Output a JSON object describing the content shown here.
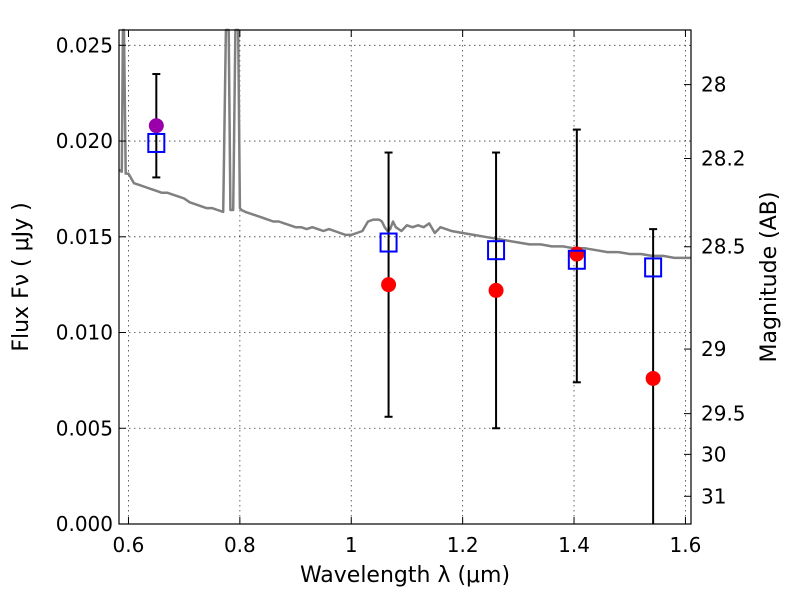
{
  "chart_data": {
    "type": "scatter",
    "xlabel": "Wavelength  λ (μm)",
    "ylabel": "Flux  Fν  ( μJy )",
    "y2label": "Magnitude (AB)",
    "xlim": [
      0.583,
      1.61
    ],
    "ylim": [
      0.0,
      0.0258
    ],
    "x_ticks": [
      0.6,
      0.8,
      1.0,
      1.2,
      1.4,
      1.6
    ],
    "x_tick_labels": [
      "0.6",
      "0.8",
      "1",
      "1.2",
      "1.4",
      "1.6"
    ],
    "y_ticks": [
      0.0,
      0.005,
      0.01,
      0.015,
      0.02,
      0.025
    ],
    "y_tick_labels": [
      "0.000",
      "0.005",
      "0.010",
      "0.015",
      "0.020",
      "0.025"
    ],
    "mag_ticks": [
      28,
      28.2,
      28.5,
      29,
      29.5,
      30,
      31
    ],
    "mag_tick_labels": [
      "28",
      "28.2",
      "28.5",
      "29",
      "29.5",
      "30",
      "31"
    ],
    "grid": true,
    "colors": {
      "model": "#808080",
      "observed": "#ff0000",
      "observed_first": "#9900aa",
      "model_photometry": "#0000ff",
      "errorbar": "#000000"
    },
    "model_spectrum": {
      "x": [
        0.583,
        0.588,
        0.59,
        0.592,
        0.595,
        0.6,
        0.61,
        0.62,
        0.63,
        0.64,
        0.65,
        0.66,
        0.67,
        0.68,
        0.69,
        0.7,
        0.71,
        0.72,
        0.73,
        0.74,
        0.75,
        0.76,
        0.77,
        0.775,
        0.78,
        0.783,
        0.788,
        0.792,
        0.797,
        0.8,
        0.803,
        0.81,
        0.82,
        0.83,
        0.84,
        0.85,
        0.86,
        0.87,
        0.88,
        0.89,
        0.9,
        0.91,
        0.92,
        0.93,
        0.94,
        0.95,
        0.96,
        0.97,
        0.98,
        0.99,
        1.0,
        1.01,
        1.02,
        1.03,
        1.04,
        1.05,
        1.055,
        1.06,
        1.065,
        1.07,
        1.075,
        1.08,
        1.09,
        1.1,
        1.11,
        1.12,
        1.13,
        1.14,
        1.15,
        1.16,
        1.17,
        1.18,
        1.2,
        1.22,
        1.24,
        1.26,
        1.28,
        1.3,
        1.32,
        1.34,
        1.36,
        1.38,
        1.4,
        1.42,
        1.44,
        1.46,
        1.48,
        1.5,
        1.52,
        1.54,
        1.56,
        1.58,
        1.6,
        1.61
      ],
      "y": [
        0.0185,
        0.0184,
        0.0258,
        0.0258,
        0.0183,
        0.0183,
        0.0178,
        0.0177,
        0.0176,
        0.0175,
        0.0174,
        0.0173,
        0.0173,
        0.0172,
        0.0171,
        0.017,
        0.0168,
        0.0167,
        0.0166,
        0.0165,
        0.0165,
        0.0164,
        0.0163,
        0.0258,
        0.0258,
        0.0164,
        0.0164,
        0.0258,
        0.0258,
        0.0165,
        0.0164,
        0.0163,
        0.0162,
        0.0161,
        0.016,
        0.0159,
        0.0158,
        0.0158,
        0.0157,
        0.0156,
        0.0155,
        0.0155,
        0.0154,
        0.0155,
        0.0154,
        0.0153,
        0.0154,
        0.0153,
        0.0152,
        0.0151,
        0.0151,
        0.0152,
        0.0153,
        0.0158,
        0.0159,
        0.0159,
        0.0158,
        0.0155,
        0.0153,
        0.0154,
        0.0158,
        0.0155,
        0.0153,
        0.0156,
        0.0155,
        0.0156,
        0.0155,
        0.0157,
        0.0152,
        0.0155,
        0.0154,
        0.0153,
        0.0152,
        0.0151,
        0.015,
        0.0149,
        0.0148,
        0.0147,
        0.0146,
        0.0146,
        0.0145,
        0.0145,
        0.0144,
        0.0144,
        0.0143,
        0.0142,
        0.0142,
        0.0141,
        0.0141,
        0.014,
        0.014,
        0.0139,
        0.0139,
        0.0139
      ]
    },
    "observed_points": [
      {
        "x": 0.65,
        "y": 0.0208,
        "err_lo": 0.0181,
        "err_hi": 0.0235
      },
      {
        "x": 1.067,
        "y": 0.0125,
        "err_lo": 0.0056,
        "err_hi": 0.0194
      },
      {
        "x": 1.26,
        "y": 0.0122,
        "err_lo": 0.005,
        "err_hi": 0.0194
      },
      {
        "x": 1.405,
        "y": 0.0141,
        "err_lo": 0.0074,
        "err_hi": 0.0206
      },
      {
        "x": 1.542,
        "y": 0.0076,
        "err_lo": 0.0,
        "err_hi": 0.0154
      }
    ],
    "model_photometry": [
      {
        "x": 0.65,
        "y": 0.0199
      },
      {
        "x": 1.067,
        "y": 0.0147
      },
      {
        "x": 1.26,
        "y": 0.0143
      },
      {
        "x": 1.405,
        "y": 0.0138
      },
      {
        "x": 1.542,
        "y": 0.0134
      }
    ]
  }
}
